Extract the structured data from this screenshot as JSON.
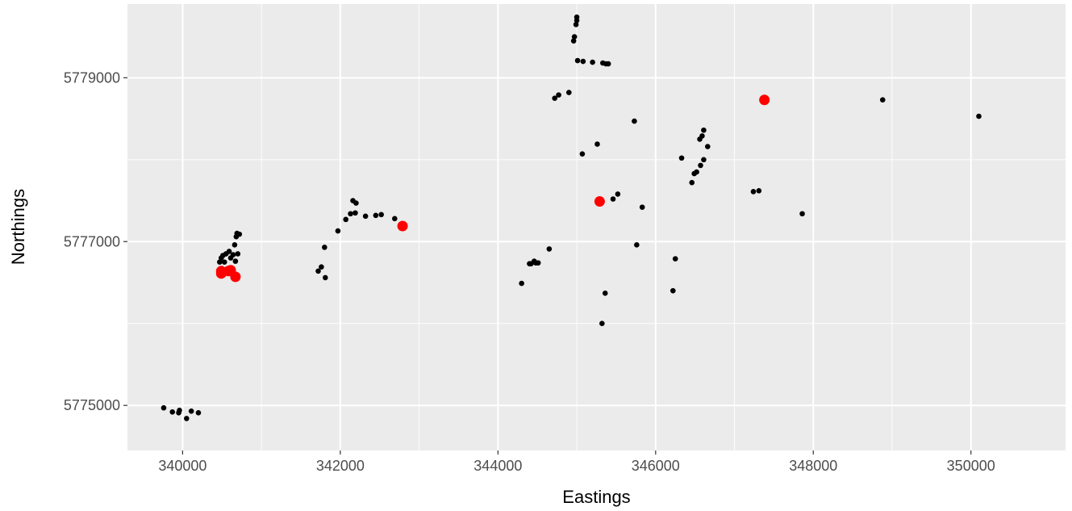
{
  "chart_data": {
    "type": "scatter",
    "title": "",
    "xlabel": "Eastings",
    "ylabel": "Northings",
    "xlim": [
      339300,
      351200
    ],
    "ylim": [
      5774450,
      5779900
    ],
    "x_ticks": [
      340000,
      342000,
      344000,
      346000,
      348000,
      350000
    ],
    "x_tick_labels": [
      "340000",
      "342000",
      "344000",
      "346000",
      "348000",
      "350000"
    ],
    "y_ticks": [
      5775000,
      5777000,
      5779000
    ],
    "y_tick_labels": [
      "5775000",
      "5777000",
      "5779000"
    ],
    "grid": true,
    "legend": "none",
    "colors": {
      "panel": "#ebebeb",
      "grid": "#ffffff",
      "points": "#000000",
      "highlight": "#ff0000"
    },
    "series": [
      {
        "points": [
          [
            339760,
            5774970
          ],
          [
            339870,
            5774920
          ],
          [
            339950,
            5774910
          ],
          [
            339960,
            5774940
          ],
          [
            340050,
            5774840
          ],
          [
            340110,
            5774930
          ],
          [
            340200,
            5774910
          ],
          [
            340470,
            5776750
          ],
          [
            340490,
            5776800
          ],
          [
            340510,
            5776830
          ],
          [
            340530,
            5776750
          ],
          [
            340550,
            5776850
          ],
          [
            340590,
            5776880
          ],
          [
            340610,
            5776800
          ],
          [
            340640,
            5776840
          ],
          [
            340660,
            5776960
          ],
          [
            340670,
            5776760
          ],
          [
            340680,
            5777060
          ],
          [
            340690,
            5777100
          ],
          [
            340700,
            5776850
          ],
          [
            340720,
            5777090
          ],
          [
            341720,
            5776640
          ],
          [
            341760,
            5776690
          ],
          [
            341800,
            5776930
          ],
          [
            341810,
            5776560
          ],
          [
            341970,
            5777130
          ],
          [
            342070,
            5777270
          ],
          [
            342130,
            5777340
          ],
          [
            342160,
            5777500
          ],
          [
            342190,
            5777350
          ],
          [
            342200,
            5777470
          ],
          [
            342320,
            5777310
          ],
          [
            342450,
            5777320
          ],
          [
            342520,
            5777330
          ],
          [
            342690,
            5777280
          ],
          [
            344300,
            5776490
          ],
          [
            344400,
            5776730
          ],
          [
            344420,
            5776730
          ],
          [
            344460,
            5776760
          ],
          [
            344480,
            5776740
          ],
          [
            344510,
            5776740
          ],
          [
            344650,
            5776910
          ],
          [
            344720,
            5778750
          ],
          [
            344770,
            5778790
          ],
          [
            344900,
            5778820
          ],
          [
            344960,
            5779450
          ],
          [
            344970,
            5779500
          ],
          [
            344990,
            5779650
          ],
          [
            345000,
            5779700
          ],
          [
            345000,
            5779740
          ],
          [
            345010,
            5779210
          ],
          [
            345070,
            5778070
          ],
          [
            345080,
            5779200
          ],
          [
            345200,
            5779190
          ],
          [
            345260,
            5778190
          ],
          [
            345320,
            5776000
          ],
          [
            345330,
            5779180
          ],
          [
            345360,
            5776370
          ],
          [
            345370,
            5779170
          ],
          [
            345400,
            5779170
          ],
          [
            345460,
            5777520
          ],
          [
            345520,
            5777580
          ],
          [
            345730,
            5778470
          ],
          [
            345760,
            5776960
          ],
          [
            345830,
            5777420
          ],
          [
            346220,
            5776400
          ],
          [
            346250,
            5776790
          ],
          [
            346330,
            5778020
          ],
          [
            346460,
            5777720
          ],
          [
            346490,
            5777830
          ],
          [
            346520,
            5777850
          ],
          [
            346560,
            5778250
          ],
          [
            346570,
            5777930
          ],
          [
            346590,
            5778290
          ],
          [
            346610,
            5778000
          ],
          [
            346610,
            5778360
          ],
          [
            346660,
            5778160
          ],
          [
            347240,
            5777610
          ],
          [
            347310,
            5777620
          ],
          [
            347860,
            5777340
          ],
          [
            348880,
            5778730
          ],
          [
            350100,
            5778530
          ]
        ]
      },
      {
        "points": [
          [
            340490,
            5776640
          ],
          [
            340490,
            5776610
          ],
          [
            340580,
            5776640
          ],
          [
            340610,
            5776650
          ],
          [
            340670,
            5776570
          ],
          [
            342790,
            5777190
          ],
          [
            345290,
            5777490
          ],
          [
            347380,
            5778730
          ]
        ]
      }
    ]
  }
}
